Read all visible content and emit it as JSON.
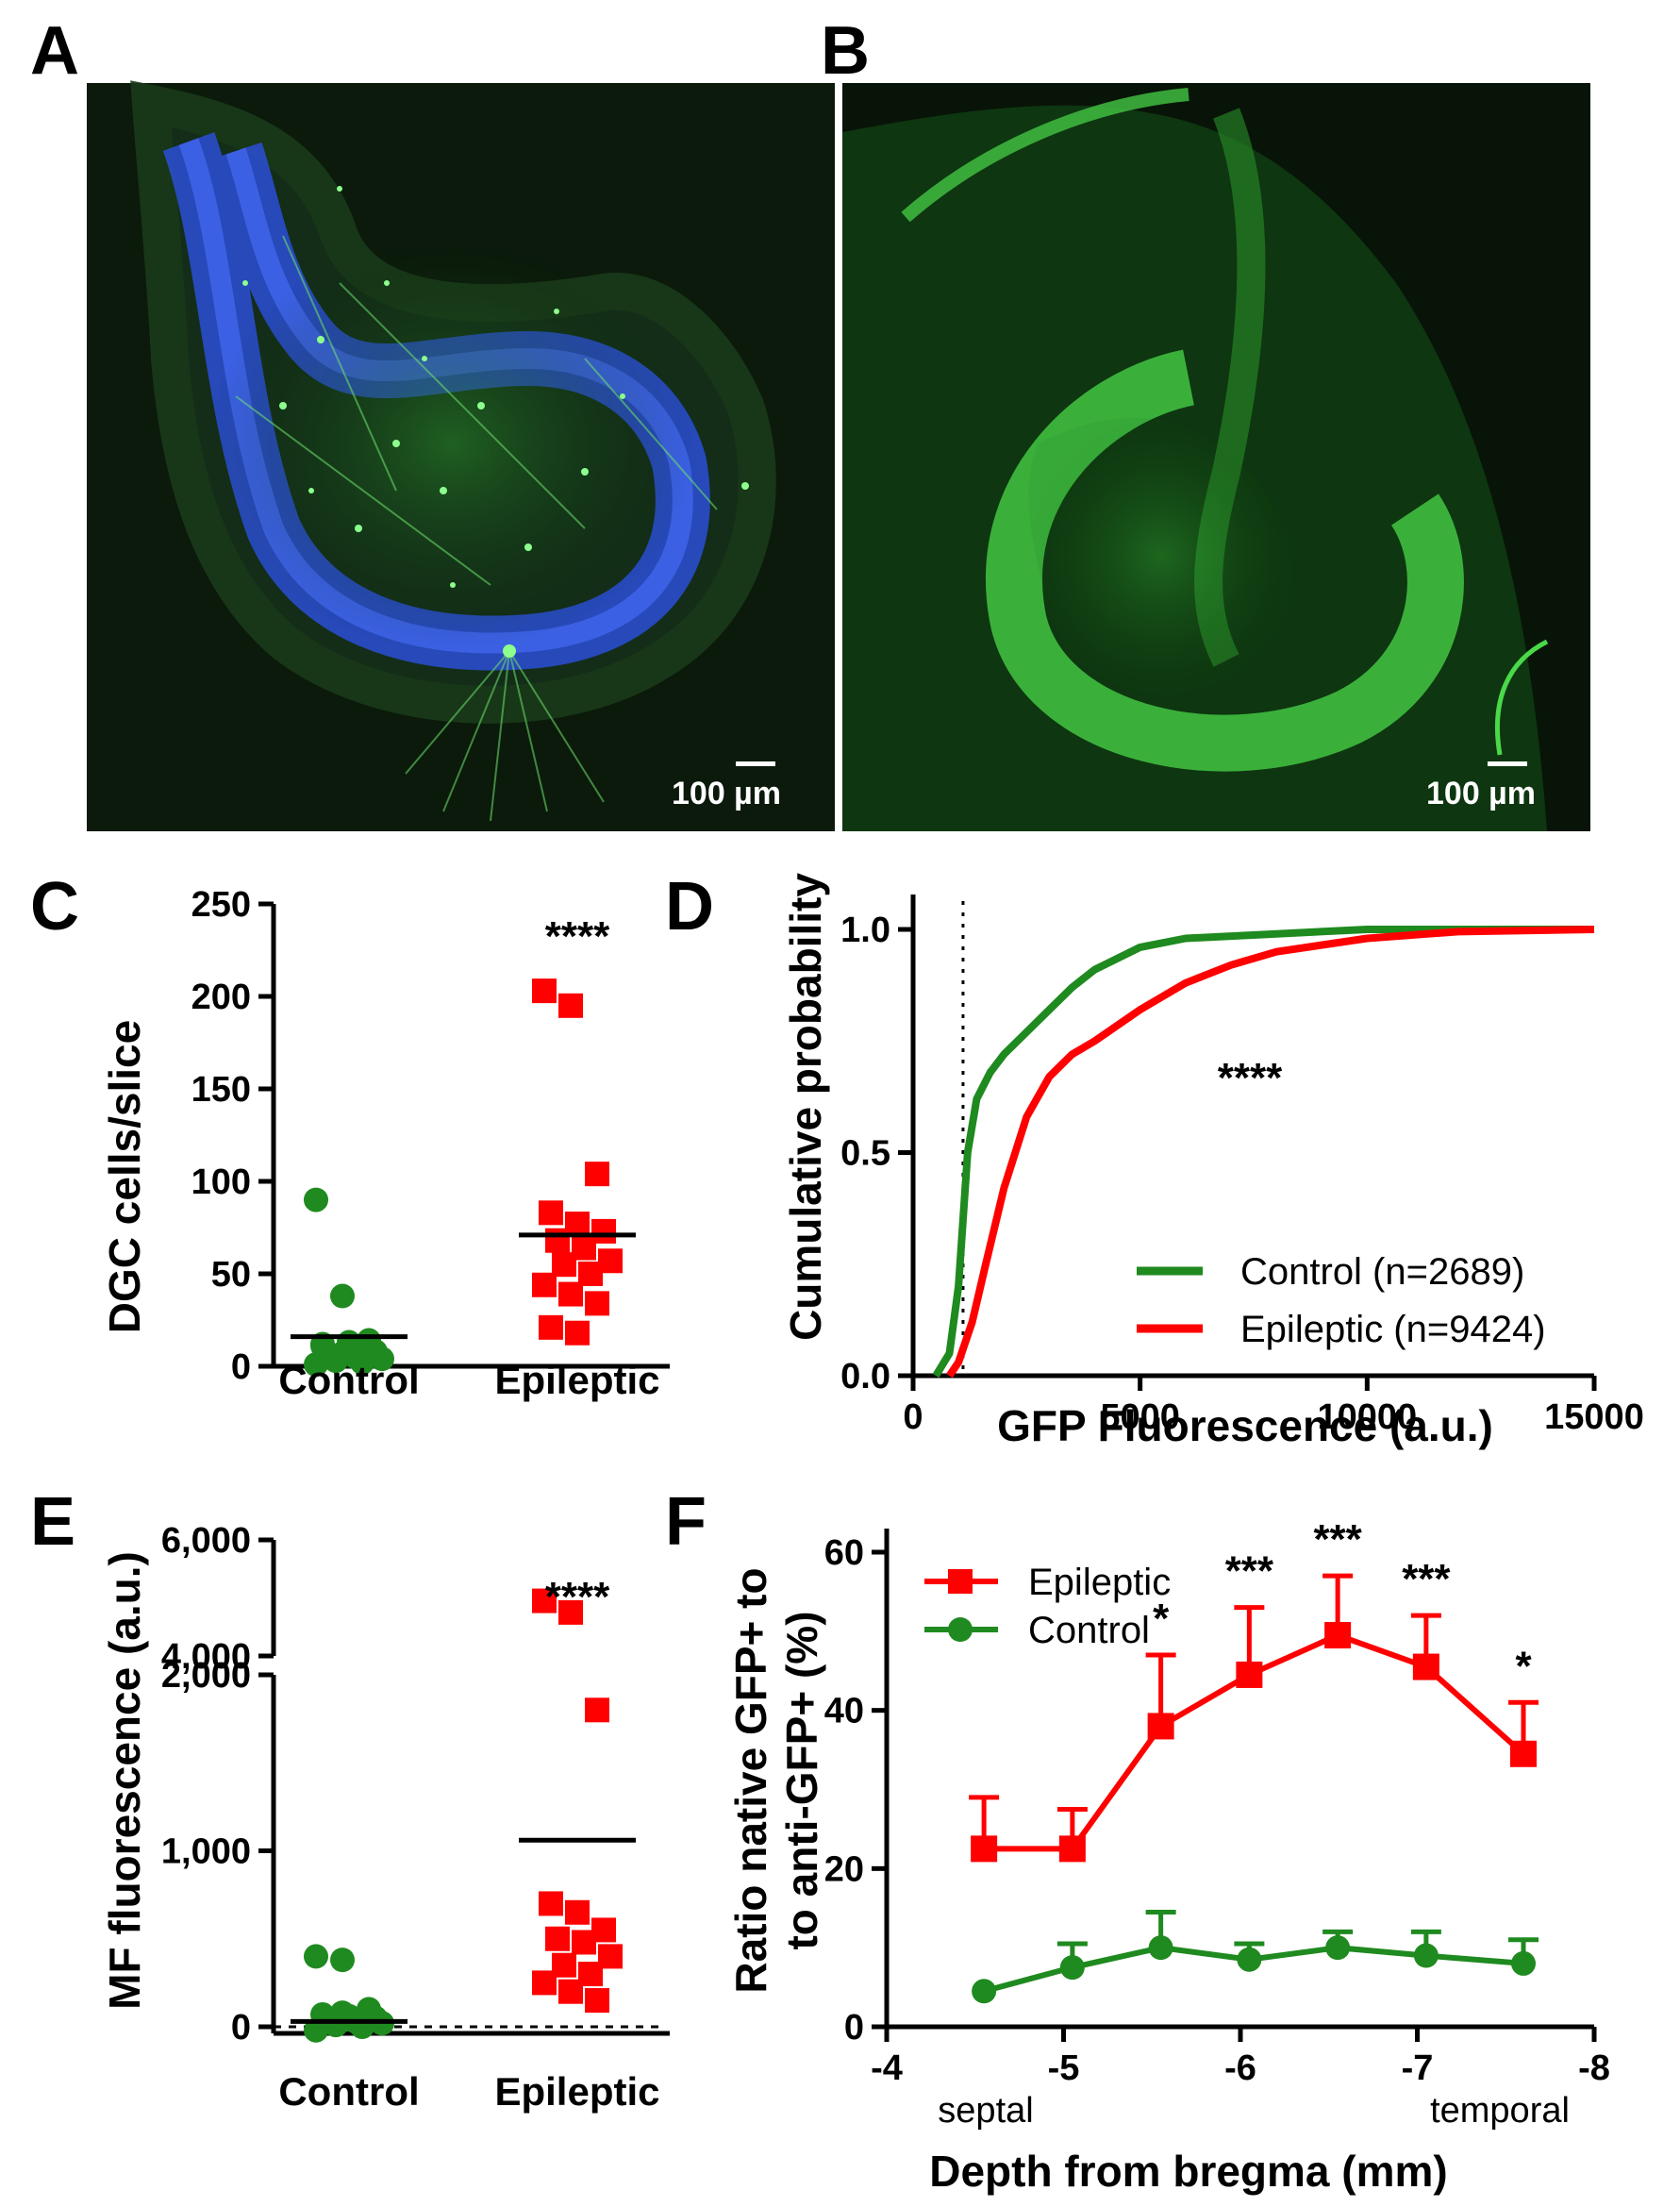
{
  "panels": {
    "A": "A",
    "B": "B",
    "C": "C",
    "D": "D",
    "E": "E",
    "F": "F"
  },
  "micrographs": [
    {
      "panel": "A",
      "scale_bar": "100 µm",
      "channels": [
        "blue",
        "green"
      ]
    },
    {
      "panel": "B",
      "scale_bar": "100 µm",
      "channels": [
        "green"
      ]
    }
  ],
  "colors": {
    "control": "#1f8a1f",
    "epileptic": "#ff0000"
  },
  "chart_data": [
    {
      "panel": "C",
      "type": "scatter",
      "ylabel": "DGC cells/slice",
      "categories": [
        "Control",
        "Epileptic"
      ],
      "ylim": [
        0,
        250
      ],
      "yticks": [
        "0",
        "50",
        "100",
        "150",
        "200",
        "250"
      ],
      "significance": "****",
      "series": [
        {
          "group": "Control",
          "mean": 16,
          "values": [
            90,
            38,
            14,
            12,
            10,
            8,
            6,
            5,
            4,
            3,
            2,
            1,
            7,
            9,
            11,
            13
          ]
        },
        {
          "group": "Epileptic",
          "mean": 71,
          "values": [
            203,
            195,
            104,
            83,
            77,
            73,
            68,
            64,
            57,
            55,
            50,
            44,
            39,
            34,
            21,
            18
          ]
        }
      ]
    },
    {
      "panel": "D",
      "type": "line",
      "xlabel": "GFP Fluorescence (a.u.)",
      "ylabel": "Cumulative probability",
      "xlim": [
        0,
        15000
      ],
      "ylim": [
        0,
        1
      ],
      "xticks": [
        "0",
        "5000",
        "10000",
        "15000"
      ],
      "yticks": [
        "0.0",
        "0.5",
        "1.0"
      ],
      "threshold_x": 1100,
      "significance": "****",
      "series": [
        {
          "name": "Control (n=2689)",
          "x": [
            500,
            800,
            1000,
            1200,
            1400,
            1700,
            2000,
            2500,
            3000,
            3500,
            4000,
            5000,
            6000,
            8000,
            10000,
            12000,
            15000
          ],
          "y": [
            0,
            0.05,
            0.2,
            0.5,
            0.62,
            0.68,
            0.72,
            0.77,
            0.82,
            0.87,
            0.91,
            0.96,
            0.98,
            0.99,
            1.0,
            1.0,
            1.0
          ]
        },
        {
          "name": "Epileptic (n=9424)",
          "x": [
            800,
            1000,
            1300,
            1600,
            2000,
            2500,
            3000,
            3500,
            4000,
            5000,
            6000,
            7000,
            8000,
            10000,
            12000,
            15000
          ],
          "y": [
            0,
            0.03,
            0.12,
            0.25,
            0.42,
            0.58,
            0.67,
            0.72,
            0.75,
            0.82,
            0.88,
            0.92,
            0.95,
            0.98,
            0.995,
            1.0
          ]
        }
      ]
    },
    {
      "panel": "E",
      "type": "scatter",
      "ylabel": "MF fluorescence (a.u.)",
      "categories": [
        "Control",
        "Epileptic"
      ],
      "ylim": [
        0,
        6000
      ],
      "axis_break": [
        2000,
        4000
      ],
      "yticks": [
        "0",
        "1,000",
        "2,000",
        "4,000",
        "6,000"
      ],
      "significance": "****",
      "series": [
        {
          "group": "Control",
          "mean": 30,
          "values": [
            400,
            380,
            90,
            70,
            60,
            50,
            40,
            30,
            20,
            10,
            0,
            -20,
            80,
            100
          ]
        },
        {
          "group": "Epileptic",
          "mean": 1060,
          "values": [
            4950,
            4750,
            1800,
            700,
            650,
            550,
            500,
            480,
            400,
            350,
            300,
            250,
            200,
            150
          ]
        }
      ]
    },
    {
      "panel": "F",
      "type": "line",
      "xlabel": "Depth from bregma (mm)",
      "ylabel": "Ratio native GFP+ to anti-GFP+ (%)",
      "ylabel_lines": [
        "Ratio native GFP+ to",
        "to anti-GFP+ (%)"
      ],
      "xlim": [
        -4,
        -8
      ],
      "ylim": [
        0,
        60
      ],
      "xticks": [
        "-4",
        "-5",
        "-6",
        "-7",
        "-8"
      ],
      "yticks": [
        "0",
        "20",
        "40",
        "60"
      ],
      "x_annotations": [
        "septal",
        "temporal"
      ],
      "series": [
        {
          "name": "Epileptic",
          "x": [
            -4.55,
            -5.05,
            -5.55,
            -6.05,
            -6.55,
            -7.05,
            -7.6
          ],
          "y": [
            22.5,
            22.5,
            38,
            44.5,
            49.5,
            45.5,
            34.5
          ],
          "error": [
            6.5,
            5,
            9,
            8.5,
            7.5,
            6.5,
            6.5
          ]
        },
        {
          "name": "Control",
          "x": [
            -4.55,
            -5.05,
            -5.55,
            -6.05,
            -6.55,
            -7.05,
            -7.6
          ],
          "y": [
            4.5,
            7.5,
            10,
            8.5,
            10,
            9,
            8
          ],
          "error": [
            0,
            3,
            4.5,
            2,
            2,
            3,
            3
          ]
        }
      ],
      "significance": [
        "",
        "",
        "*",
        "***",
        "***",
        "***",
        "*"
      ]
    }
  ]
}
